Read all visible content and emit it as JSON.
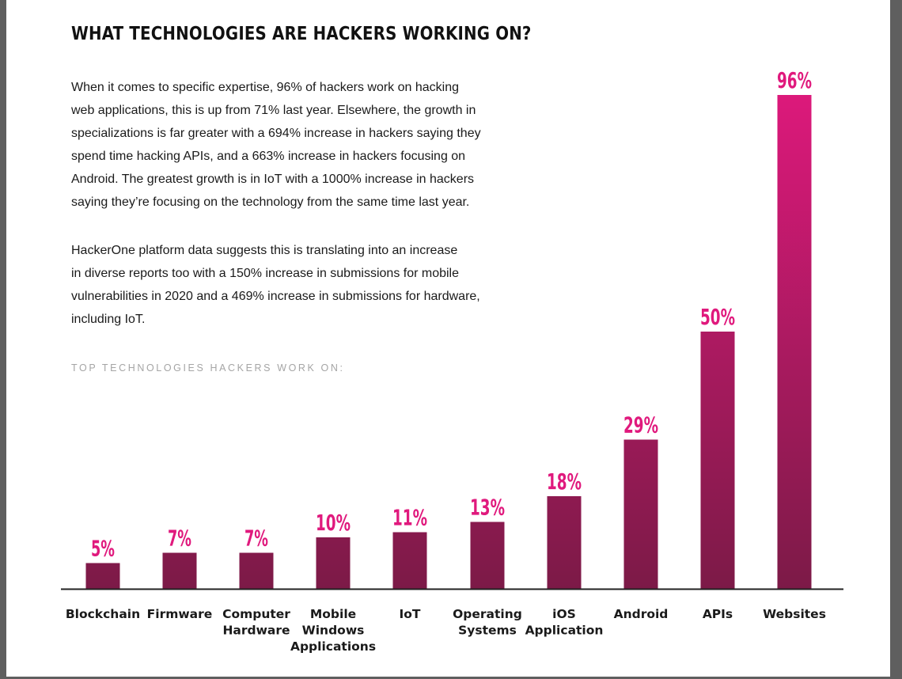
{
  "title": "WHAT TECHNOLOGIES ARE HACKERS WORKING ON?",
  "paragraph_1": [
    "When it comes to specific expertise, 96% of hackers work on hacking",
    "web applications, this is up from 71% last year. Elsewhere, the growth in",
    "specializations is far greater with a 694% increase in hackers saying they",
    "spend time hacking APIs, and a 663% increase in hackers focusing on",
    "Android. The greatest growth is in IoT with a 1000% increase in hackers",
    "saying they’re focusing on the technology from the same time last year."
  ],
  "paragraph_2": [
    "HackerOne platform data suggests this is translating into an increase",
    "in diverse reports too with a 150% increase in submissions for mobile",
    "vulnerabilities in 2020 and a 469% increase in submissions for hardware,",
    "including IoT."
  ],
  "chart_data": {
    "type": "bar",
    "title": "TOP TECHNOLOGIES HACKERS WORK ON:",
    "categories": [
      [
        "Blockchain"
      ],
      [
        "Firmware"
      ],
      [
        "Computer",
        "Hardware"
      ],
      [
        "Mobile",
        "Windows",
        "Applications"
      ],
      [
        "IoT"
      ],
      [
        "Operating",
        "Systems"
      ],
      [
        "iOS",
        "Application"
      ],
      [
        "Android"
      ],
      [
        "APIs"
      ],
      [
        "Websites"
      ]
    ],
    "values": [
      5,
      7,
      7,
      10,
      11,
      13,
      18,
      29,
      50,
      96
    ],
    "value_labels": [
      "5%",
      "7%",
      "7%",
      "10%",
      "11%",
      "13%",
      "18%",
      "29%",
      "50%",
      "96%"
    ],
    "unit": "%",
    "colors": {
      "bar_low": "#7c1a47",
      "bar_high": "#e0197d",
      "label": "#e0197d",
      "axis": "#222222"
    },
    "grid": false,
    "legend": "none"
  }
}
